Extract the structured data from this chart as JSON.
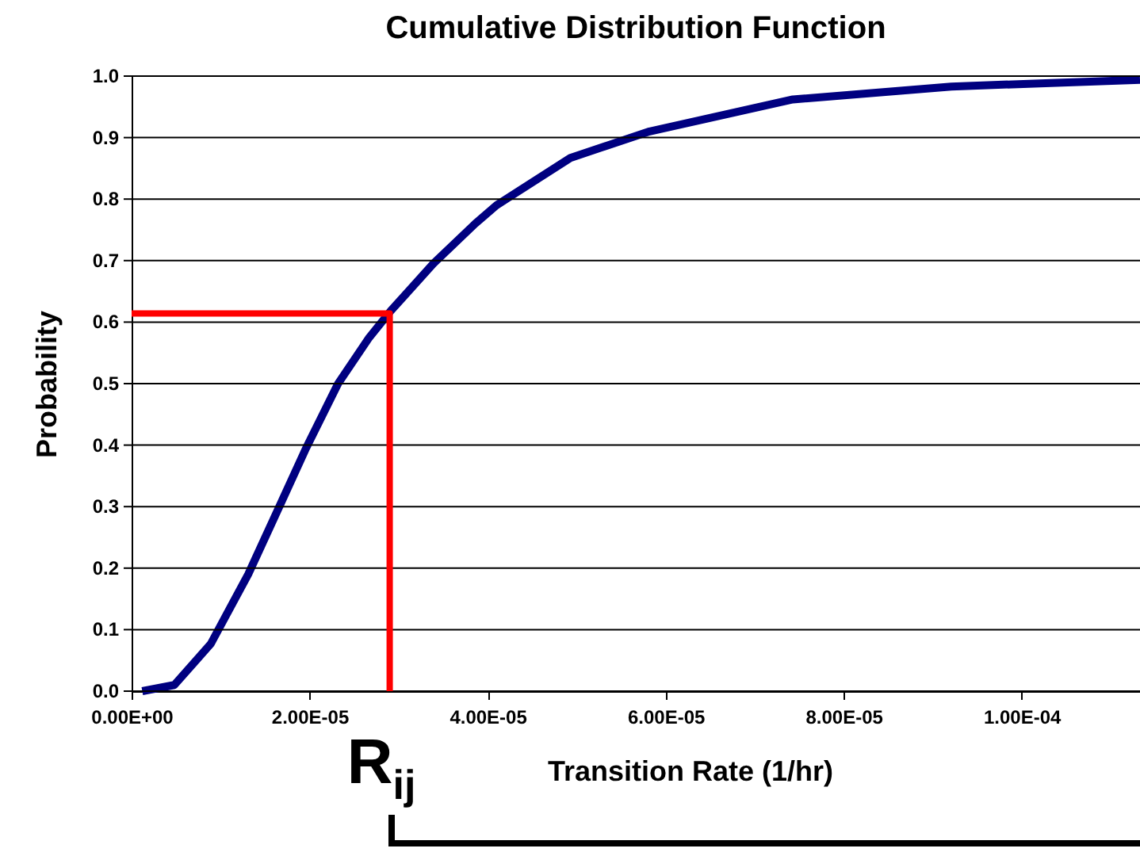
{
  "chart_data": {
    "type": "line",
    "title": "Cumulative Distribution Function",
    "xlabel": "Transition Rate (1/hr)",
    "ylabel": "Probability",
    "xlim": [
      0,
      0.0001133
    ],
    "ylim": [
      0,
      1
    ],
    "xticks": [
      {
        "value": 0,
        "label": "0.00E+00"
      },
      {
        "value": 2e-05,
        "label": "2.00E-05"
      },
      {
        "value": 4e-05,
        "label": "4.00E-05"
      },
      {
        "value": 6e-05,
        "label": "6.00E-05"
      },
      {
        "value": 8e-05,
        "label": "8.00E-05"
      },
      {
        "value": 0.0001,
        "label": "1.00E-04"
      }
    ],
    "yticks": [
      {
        "value": 0,
        "label": "0.0"
      },
      {
        "value": 0.1,
        "label": "0.1"
      },
      {
        "value": 0.2,
        "label": "0.2"
      },
      {
        "value": 0.3,
        "label": "0.3"
      },
      {
        "value": 0.4,
        "label": "0.4"
      },
      {
        "value": 0.5,
        "label": "0.5"
      },
      {
        "value": 0.6,
        "label": "0.6"
      },
      {
        "value": 0.7,
        "label": "0.7"
      },
      {
        "value": 0.8,
        "label": "0.8"
      },
      {
        "value": 0.9,
        "label": "0.9"
      },
      {
        "value": 1,
        "label": "1.0"
      }
    ],
    "grid": "y",
    "series": [
      {
        "color": "#000080",
        "x": [
          1.2e-06,
          4.8e-06,
          8.9e-06,
          1.31e-05,
          1.66e-05,
          1.96e-05,
          2.32e-05,
          2.67e-05,
          2.91e-05,
          3.39e-05,
          3.86e-05,
          4.1e-05,
          4.93e-05,
          5.82e-05,
          7.43e-05,
          9.21e-05,
          0.0001133
        ],
        "values": [
          0,
          0.01,
          0.077,
          0.19,
          0.3,
          0.395,
          0.5,
          0.575,
          0.618,
          0.695,
          0.76,
          0.79,
          0.867,
          0.91,
          0.962,
          0.983,
          0.994
        ]
      },
      {
        "color": "#ff0000",
        "x": [
          0,
          2.9e-05,
          2.9e-05
        ],
        "values": [
          0.614,
          0.614,
          0
        ]
      }
    ],
    "annotations": [
      {
        "text": "R$_{ij}$",
        "x": 2.9e-05
      }
    ]
  }
}
